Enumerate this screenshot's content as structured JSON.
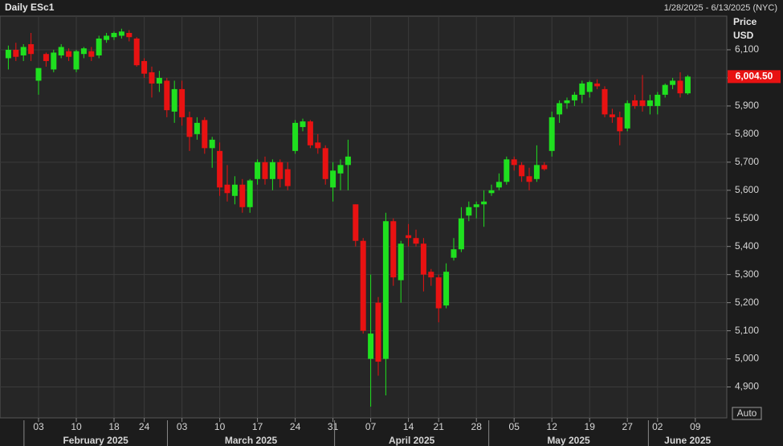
{
  "chart_data": {
    "type": "candlestick",
    "title": "Daily ESc1",
    "subtitle": "1/28/2025 - 6/13/2025 (NYC)",
    "y_label": "Price",
    "y_unit": "USD",
    "auto_button": "Auto",
    "categories": [
      null,
      null,
      null,
      null,
      "03",
      null,
      null,
      null,
      null,
      "10",
      null,
      null,
      null,
      null,
      "18",
      null,
      null,
      null,
      "24",
      null,
      null,
      null,
      null,
      "03",
      null,
      null,
      null,
      null,
      "10",
      null,
      null,
      null,
      null,
      "17",
      null,
      null,
      null,
      null,
      "24",
      null,
      null,
      null,
      null,
      "31",
      null,
      null,
      null,
      null,
      "07",
      null,
      null,
      null,
      null,
      "14",
      null,
      null,
      null,
      "21",
      null,
      null,
      null,
      null,
      "28",
      null,
      null,
      null,
      null,
      "05",
      null,
      null,
      null,
      null,
      "12",
      null,
      null,
      null,
      null,
      "19",
      null,
      null,
      null,
      null,
      "27",
      null,
      null,
      null,
      "02",
      null,
      null,
      null,
      null,
      "09"
    ],
    "months": [
      "February 2025",
      "March 2025",
      "April 2025",
      "May 2025",
      "June 2025"
    ],
    "open": [
      6070,
      6100,
      6080,
      6120,
      5990,
      6085,
      6030,
      6080,
      6095,
      6030,
      6085,
      6095,
      6080,
      6135,
      6145,
      6150,
      6160,
      6140,
      6060,
      6020,
      5980,
      5990,
      5880,
      5960,
      5860,
      5800,
      5850,
      5750,
      5740,
      5620,
      5580,
      5620,
      5540,
      5640,
      5700,
      5640,
      5700,
      5675,
      5740,
      5825,
      5845,
      5770,
      5750,
      5610,
      5660,
      5690,
      5550,
      5420,
      5000,
      5200,
      5000,
      5490,
      5280,
      5440,
      5430,
      5410,
      5310,
      5290,
      5190,
      5360,
      5390,
      5510,
      5540,
      5550,
      5590,
      5610,
      5630,
      5710,
      5690,
      5650,
      5640,
      5690,
      5740,
      5870,
      5910,
      5920,
      5940,
      5950,
      5980,
      5960,
      5870,
      5860,
      5820,
      5920,
      5920,
      5900,
      5900,
      5940,
      5975,
      5990,
      5945,
      null
    ],
    "high": [
      6115,
      6125,
      6120,
      6160,
      6030,
      6090,
      6100,
      6120,
      6105,
      6100,
      6110,
      6110,
      6150,
      6160,
      6165,
      6175,
      6170,
      6145,
      6070,
      6040,
      6025,
      6000,
      5990,
      5990,
      5880,
      5860,
      5860,
      5790,
      5770,
      5690,
      5650,
      5640,
      5640,
      5710,
      5720,
      5710,
      5710,
      5700,
      5850,
      5855,
      5850,
      5800,
      5760,
      5700,
      5710,
      5780,
      5550,
      5430,
      5300,
      5220,
      5520,
      5500,
      5420,
      5480,
      5460,
      5430,
      5320,
      5300,
      5340,
      5430,
      5540,
      5560,
      5560,
      5600,
      5620,
      5660,
      5720,
      5720,
      5700,
      5680,
      5760,
      5700,
      5880,
      5920,
      5930,
      5950,
      5990,
      5990,
      5995,
      5970,
      5890,
      5880,
      5920,
      5940,
      6010,
      5940,
      5950,
      5980,
      6000,
      6020,
      6010,
      null
    ],
    "low": [
      6030,
      6060,
      6060,
      6060,
      5940,
      6040,
      6020,
      6070,
      6060,
      6020,
      6070,
      6060,
      6070,
      6125,
      6135,
      6140,
      6130,
      6040,
      6000,
      5930,
      5950,
      5860,
      5840,
      5830,
      5740,
      5780,
      5730,
      5680,
      5580,
      5560,
      5550,
      5520,
      5520,
      5620,
      5620,
      5600,
      5610,
      5600,
      5730,
      5810,
      5750,
      5730,
      5620,
      5560,
      5600,
      5600,
      5400,
      5090,
      4830,
      4940,
      4870,
      5260,
      5200,
      5400,
      5400,
      5240,
      5260,
      5130,
      5180,
      5350,
      5380,
      5490,
      5500,
      5470,
      5580,
      5600,
      5620,
      5670,
      5630,
      5600,
      5630,
      5670,
      5720,
      5840,
      5890,
      5900,
      5910,
      5930,
      5960,
      5860,
      5840,
      5760,
      5810,
      5890,
      5880,
      5870,
      5870,
      5930,
      5960,
      5930,
      5940,
      null
    ],
    "close": [
      6100,
      6075,
      6110,
      6085,
      6035,
      6060,
      6090,
      6110,
      6075,
      6095,
      6105,
      6075,
      6140,
      6150,
      6160,
      6165,
      6145,
      6045,
      6015,
      5980,
      6000,
      5885,
      5960,
      5860,
      5790,
      5840,
      5750,
      5780,
      5610,
      5590,
      5620,
      5540,
      5635,
      5700,
      5640,
      5700,
      5640,
      5615,
      5840,
      5845,
      5760,
      5750,
      5640,
      5670,
      5690,
      5720,
      5420,
      5100,
      5090,
      4990,
      5490,
      5290,
      5410,
      5430,
      5410,
      5300,
      5290,
      5180,
      5310,
      5390,
      5500,
      5540,
      5550,
      5560,
      5600,
      5630,
      5710,
      5690,
      5650,
      5630,
      5690,
      5675,
      5860,
      5910,
      5920,
      5940,
      5980,
      5985,
      5970,
      5870,
      5860,
      5810,
      5910,
      5900,
      5900,
      5920,
      5940,
      5975,
      5990,
      5945,
      6004.5,
      null
    ],
    "last_price_label": "6,004.50",
    "up_color": "#1fe01f",
    "down_color": "#e81212",
    "ylim": [
      4790,
      6220
    ],
    "yticks": [
      {
        "value": 4900,
        "label": "4,900"
      },
      {
        "value": 5000,
        "label": "5,000"
      },
      {
        "value": 5100,
        "label": "5,100"
      },
      {
        "value": 5200,
        "label": "5,200"
      },
      {
        "value": 5300,
        "label": "5,300"
      },
      {
        "value": 5400,
        "label": "5,400"
      },
      {
        "value": 5500,
        "label": "5,500"
      },
      {
        "value": 5600,
        "label": "5,600"
      },
      {
        "value": 5700,
        "label": "5,700"
      },
      {
        "value": 5800,
        "label": "5,800"
      },
      {
        "value": 5900,
        "label": "5,900"
      },
      {
        "value": 6000,
        "label": "6,000"
      },
      {
        "value": 6100,
        "label": "6,100"
      }
    ],
    "grid": true
  }
}
